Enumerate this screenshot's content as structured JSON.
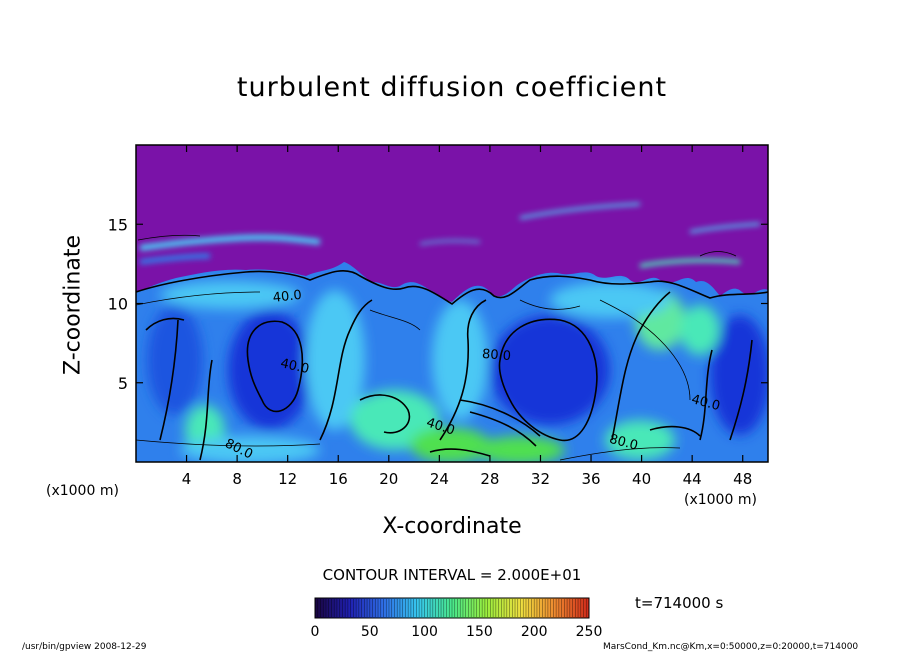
{
  "chart_data": {
    "type": "heatmap",
    "title": "turbulent diffusion coefficient",
    "xlabel": "X-coordinate",
    "ylabel": "Z-coordinate",
    "x_unit_label": "(x1000 m)",
    "xlim": [
      0,
      50
    ],
    "ylim": [
      0,
      20
    ],
    "x_ticks": [
      4,
      8,
      12,
      16,
      20,
      24,
      28,
      32,
      36,
      40,
      44,
      48
    ],
    "y_ticks": [
      5,
      10,
      15
    ],
    "contour_interval_text": "CONTOUR INTERVAL = 2.000E+01",
    "contour_labels": [
      {
        "text": "80.0",
        "x": 8.0,
        "z": 0.6
      },
      {
        "text": "40.0",
        "x": 12.5,
        "z": 5.8
      },
      {
        "text": "40.0",
        "x": 12.0,
        "z": 10.2
      },
      {
        "text": "40.0",
        "x": 24.0,
        "z": 2.0
      },
      {
        "text": "80.0",
        "x": 28.5,
        "z": 6.5
      },
      {
        "text": "80.0",
        "x": 38.5,
        "z": 1.0
      },
      {
        "text": "40.0",
        "x": 45.0,
        "z": 3.5
      }
    ],
    "colorbar": {
      "ticks": [
        0,
        50,
        100,
        150,
        200,
        250
      ],
      "range": [
        0,
        250
      ],
      "colors": [
        "#1a0540",
        "#1f1fb0",
        "#2f6fe8",
        "#37c7ee",
        "#49e88c",
        "#9aee3e",
        "#eee040",
        "#ee8a30",
        "#d02a1a"
      ]
    },
    "time_label": "t=714000 s"
  },
  "colors": {
    "top_region": "#7a12a8",
    "deep_blue": "#1636d8",
    "mid_blue": "#2f80ec",
    "light_blue": "#4cc8f4",
    "cyan_green": "#48e8b8",
    "green": "#50e050",
    "yellow_green": "#b8f040"
  },
  "footer": {
    "left": "/usr/bin/gpview   2008-12-29",
    "right": "MarsCond_Km.nc@Km,x=0:50000,z=0:20000,t=714000"
  }
}
